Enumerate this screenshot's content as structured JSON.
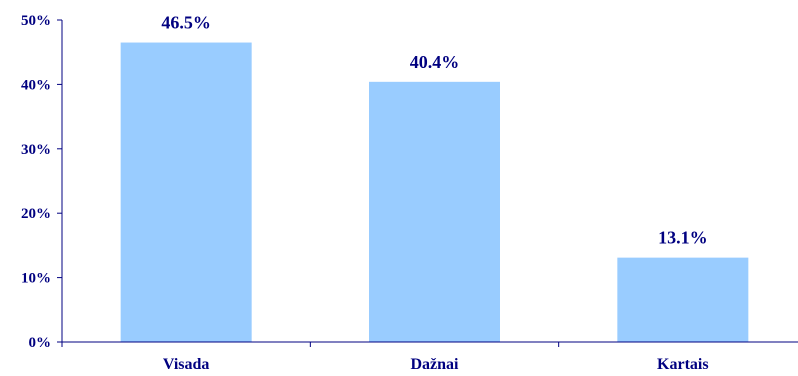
{
  "chart_data": {
    "type": "bar",
    "categories": [
      "Visada",
      "Dažnai",
      "Kartais"
    ],
    "values": [
      46.5,
      40.4,
      13.1
    ],
    "value_labels": [
      "46.5%",
      "40.4%",
      "13.1%"
    ],
    "ylim": [
      0,
      50
    ],
    "yticks": [
      0,
      10,
      20,
      30,
      40,
      50
    ],
    "ytick_labels": [
      "0%",
      "10%",
      "20%",
      "30%",
      "40%",
      "50%"
    ],
    "title": "",
    "xlabel": "",
    "ylabel": "",
    "grid": false,
    "legend": "none",
    "colors": {
      "bar": "#99ccff",
      "axis": "#000080",
      "text": "#000080"
    }
  }
}
